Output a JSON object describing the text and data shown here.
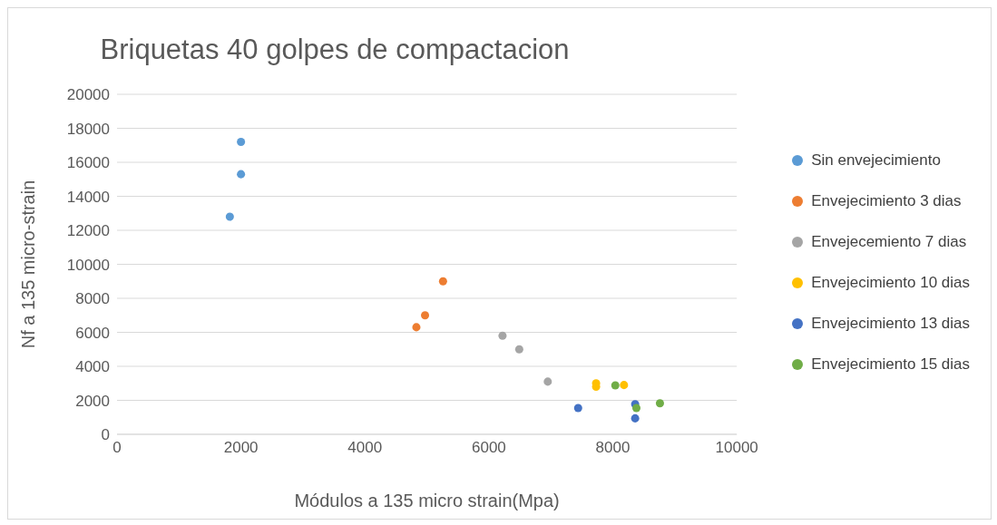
{
  "chart_data": {
    "type": "scatter",
    "title": "Briquetas 40 golpes de compactacion",
    "xlabel": "Módulos a 135 micro strain(Mpa)",
    "ylabel": "Nf  a  135 micro-strain",
    "xlim": [
      0,
      10000
    ],
    "xticks": [
      0,
      2000,
      4000,
      6000,
      8000,
      10000
    ],
    "ylim": [
      0,
      20000
    ],
    "yticks": [
      0,
      2000,
      4000,
      6000,
      8000,
      10000,
      12000,
      14000,
      16000,
      18000,
      20000
    ],
    "grid": "y",
    "legend": "right",
    "marker": "circle",
    "series": [
      {
        "name": "Sin envejecimiento",
        "color": "#5b9bd5",
        "x": [
          2000,
          2000,
          1820
        ],
        "values": [
          17200,
          15300,
          12800
        ]
      },
      {
        "name": "Envejecimiento 3 dias",
        "color": "#ed7d31",
        "x": [
          5260,
          4970,
          4830
        ],
        "values": [
          9000,
          7000,
          6300
        ]
      },
      {
        "name": "Envejecemiento 7 dias",
        "color": "#a5a5a5",
        "x": [
          6220,
          6490,
          6950
        ],
        "values": [
          5800,
          5000,
          3100
        ]
      },
      {
        "name": "Envejecimiento 10 dias",
        "color": "#ffc000",
        "x": [
          7730,
          7730,
          8180
        ],
        "values": [
          3000,
          2800,
          2900
        ]
      },
      {
        "name": "Envejecimiento 13 dias",
        "color": "#4472c4",
        "x": [
          7440,
          8360,
          8360
        ],
        "values": [
          1550,
          1770,
          940
        ]
      },
      {
        "name": "Envejecimiento 15 dias",
        "color": "#70ad47",
        "x": [
          8040,
          8760,
          8380
        ],
        "values": [
          2880,
          1830,
          1550
        ]
      }
    ]
  }
}
